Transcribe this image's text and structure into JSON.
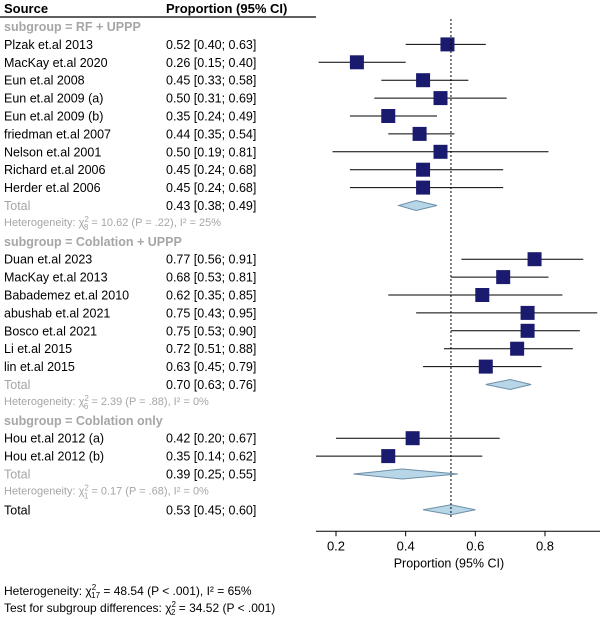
{
  "header": {
    "source": "Source",
    "proportion": "Proportion (95% CI)"
  },
  "chart_data": {
    "type": "forest",
    "xlim": [
      0.12,
      0.87
    ],
    "xticks": [
      "0.2",
      "0.4",
      "0.6",
      "0.8"
    ],
    "xlabel": "Proportion (95% CI)",
    "reference_line": 0.53,
    "groups": [
      {
        "label": "subgroup = RF + UPPP",
        "studies": [
          {
            "name": "Plzak et.al 2013",
            "ci_text": "0.52 [0.40; 0.63]",
            "est": 0.52,
            "lo": 0.4,
            "hi": 0.63
          },
          {
            "name": "MacKay et.al 2020",
            "ci_text": "0.26 [0.15; 0.40]",
            "est": 0.26,
            "lo": 0.15,
            "hi": 0.4
          },
          {
            "name": "Eun et.al 2008",
            "ci_text": "0.45 [0.33; 0.58]",
            "est": 0.45,
            "lo": 0.33,
            "hi": 0.58
          },
          {
            "name": "Eun et.al 2009 (a)",
            "ci_text": "0.50 [0.31; 0.69]",
            "est": 0.5,
            "lo": 0.31,
            "hi": 0.69
          },
          {
            "name": "Eun et.al 2009 (b)",
            "ci_text": "0.35 [0.24; 0.49]",
            "est": 0.35,
            "lo": 0.24,
            "hi": 0.49
          },
          {
            "name": "friedman et.al 2007",
            "ci_text": "0.44 [0.35; 0.54]",
            "est": 0.44,
            "lo": 0.35,
            "hi": 0.54
          },
          {
            "name": "Nelson et.al 2001",
            "ci_text": "0.50 [0.19; 0.81]",
            "est": 0.5,
            "lo": 0.19,
            "hi": 0.81
          },
          {
            "name": "Richard et.al 2006",
            "ci_text": "0.45 [0.24; 0.68]",
            "est": 0.45,
            "lo": 0.24,
            "hi": 0.68
          },
          {
            "name": "Herder et.al 2006",
            "ci_text": "0.45 [0.24; 0.68]",
            "est": 0.45,
            "lo": 0.24,
            "hi": 0.68
          }
        ],
        "total": {
          "name": "Total",
          "ci_text": "0.43 [0.38; 0.49]",
          "est": 0.43,
          "lo": 0.38,
          "hi": 0.49
        },
        "heterogeneity": {
          "prefix": "Heterogeneity: χ",
          "sup": "2",
          "sub": "8",
          "rest": " = 10.62 (P = .22), I² = 25%"
        }
      },
      {
        "label": "subgroup = Coblation + UPPP",
        "studies": [
          {
            "name": "Duan et.al 2023",
            "ci_text": "0.77 [0.56; 0.91]",
            "est": 0.77,
            "lo": 0.56,
            "hi": 0.91
          },
          {
            "name": "MacKay et.al 2013",
            "ci_text": "0.68 [0.53; 0.81]",
            "est": 0.68,
            "lo": 0.53,
            "hi": 0.81
          },
          {
            "name": " Babademez et.al 2010",
            "ci_text": "0.62 [0.35; 0.85]",
            "est": 0.62,
            "lo": 0.35,
            "hi": 0.85
          },
          {
            "name": "abushab et.al 2021",
            "ci_text": "0.75 [0.43; 0.95]",
            "est": 0.75,
            "lo": 0.43,
            "hi": 0.95
          },
          {
            "name": "Bosco et.al 2021",
            "ci_text": "0.75 [0.53; 0.90]",
            "est": 0.75,
            "lo": 0.53,
            "hi": 0.9
          },
          {
            "name": "Li et.al 2015",
            "ci_text": "0.72 [0.51; 0.88]",
            "est": 0.72,
            "lo": 0.51,
            "hi": 0.88
          },
          {
            "name": "lin et.al 2015",
            "ci_text": "0.63 [0.45; 0.79]",
            "est": 0.63,
            "lo": 0.45,
            "hi": 0.79
          }
        ],
        "total": {
          "name": "Total",
          "ci_text": "0.70 [0.63; 0.76]",
          "est": 0.7,
          "lo": 0.63,
          "hi": 0.76
        },
        "heterogeneity": {
          "prefix": "Heterogeneity: χ",
          "sup": "2",
          "sub": "6",
          "rest": " = 2.39 (P = .88), I² = 0%"
        }
      },
      {
        "label": "subgroup = Coblation only",
        "studies": [
          {
            "name": "Hou et.al 2012 (a)",
            "ci_text": "0.42 [0.20; 0.67]",
            "est": 0.42,
            "lo": 0.2,
            "hi": 0.67
          },
          {
            "name": "Hou et.al 2012 (b)",
            "ci_text": "0.35 [0.14; 0.62]",
            "est": 0.35,
            "lo": 0.14,
            "hi": 0.62
          }
        ],
        "total": {
          "name": "Total",
          "ci_text": "0.39 [0.25; 0.55]",
          "est": 0.39,
          "lo": 0.25,
          "hi": 0.55
        },
        "heterogeneity": {
          "prefix": "Heterogeneity: χ",
          "sup": "2",
          "sub": "1",
          "rest": " = 0.17 (P = .68), I² = 0%"
        }
      }
    ],
    "overall": {
      "name": "Total",
      "ci_text": "0.53 [0.45; 0.60]",
      "est": 0.53,
      "lo": 0.45,
      "hi": 0.6
    }
  },
  "footer": {
    "het_prefix": "Heterogeneity: χ",
    "het_sup": "2",
    "het_sub": "17",
    "het_rest": " = 48.54 (P < .001), I² = 65%",
    "test_prefix": "Test for subgroup differences: χ",
    "test_sup": "2",
    "test_sub": "2",
    "test_rest": " = 34.52 (P < .001)"
  },
  "colors": {
    "square": "#1a1a6e",
    "diamond": "#b7d7e8",
    "diamond_stroke": "#6d8fa8",
    "grey_text": "#a6a6a6"
  }
}
